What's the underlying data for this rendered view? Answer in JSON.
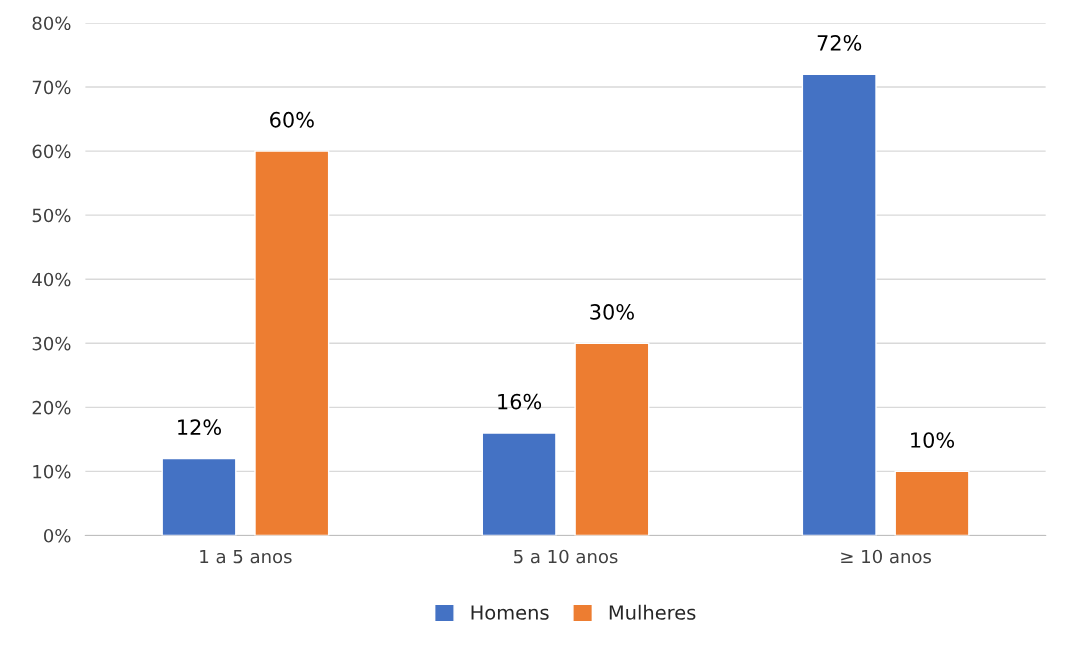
{
  "chart_data": {
    "type": "bar",
    "categories": [
      "1 a 5 anos",
      "5 a 10 anos",
      "≥ 10 anos"
    ],
    "series": [
      {
        "name": "Homens",
        "color": "#4472c4",
        "values": [
          12,
          16,
          72
        ],
        "value_labels": [
          "12%",
          "16%",
          "72%"
        ]
      },
      {
        "name": "Mulheres",
        "color": "#ed7d31",
        "values": [
          60,
          30,
          10
        ],
        "value_labels": [
          "60%",
          "30%",
          "10%"
        ]
      }
    ],
    "ylim": [
      0,
      80
    ],
    "yticks": [
      {
        "value": 0,
        "label": "0%"
      },
      {
        "value": 10,
        "label": "10%"
      },
      {
        "value": 20,
        "label": "20%"
      },
      {
        "value": 30,
        "label": "30%"
      },
      {
        "value": 40,
        "label": "40%"
      },
      {
        "value": 50,
        "label": "50%"
      },
      {
        "value": 60,
        "label": "60%"
      },
      {
        "value": 70,
        "label": "70%"
      },
      {
        "value": 80,
        "label": "80%"
      }
    ],
    "grid": "y",
    "legend": "bottom"
  }
}
